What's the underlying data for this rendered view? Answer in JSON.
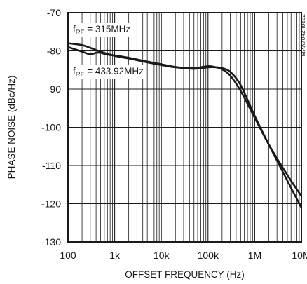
{
  "chart_data": {
    "type": "line",
    "title": "",
    "xlabel": "OFFSET FREQUENCY (Hz)",
    "ylabel": "PHASE NOISE (dBc/Hz)",
    "xscale": "log",
    "xlim": [
      100,
      10000000
    ],
    "ylim": [
      -130,
      -70
    ],
    "grid": true,
    "x_tick_values": [
      100,
      1000,
      10000,
      100000,
      1000000,
      10000000
    ],
    "x_tick_labels": [
      "100",
      "1k",
      "10k",
      "100k",
      "1M",
      "10M"
    ],
    "y_tick_values": [
      -70,
      -80,
      -90,
      -100,
      -110,
      -120,
      -130
    ],
    "y_tick_labels": [
      "-70",
      "-80",
      "-90",
      "-100",
      "-110",
      "-120",
      "-130"
    ],
    "series": [
      {
        "name": "fRF = 315MHz",
        "x": [
          100,
          200,
          300,
          500,
          1000,
          2000,
          5000,
          10000,
          20000,
          50000,
          100000,
          150000,
          200000,
          300000,
          500000,
          1000000,
          2000000,
          5000000,
          10000000
        ],
        "y": [
          -78.0,
          -78.5,
          -79.2,
          -80.2,
          -81.3,
          -82.0,
          -83.0,
          -83.7,
          -84.3,
          -84.5,
          -84.0,
          -84.3,
          -84.8,
          -86.5,
          -90.5,
          -97.5,
          -104.5,
          -112.5,
          -118.0
        ]
      },
      {
        "name": "fRF = 433.92MHz",
        "x": [
          100,
          200,
          300,
          400,
          500,
          700,
          1000,
          2000,
          5000,
          10000,
          20000,
          50000,
          100000,
          150000,
          200000,
          300000,
          500000,
          1000000,
          2000000,
          5000000,
          10000000
        ],
        "y": [
          -79.0,
          -80.2,
          -80.9,
          -80.5,
          -80.5,
          -81.0,
          -81.2,
          -81.8,
          -82.8,
          -83.5,
          -84.2,
          -84.7,
          -84.3,
          -84.3,
          -84.5,
          -85.5,
          -89.0,
          -97.0,
          -104.5,
          -114.0,
          -121.0
        ]
      }
    ]
  },
  "annotations": {
    "label_315": {
      "prefix": "f",
      "sub": "RF",
      "suffix": " = 315MHz"
    },
    "label_433": {
      "prefix": "f",
      "sub": "RF",
      "suffix": " = 433.92MHz"
    },
    "watermark": "MAX7042 toc22"
  }
}
